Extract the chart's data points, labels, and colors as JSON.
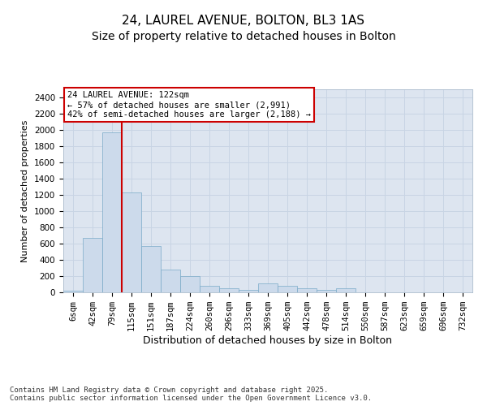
{
  "title1": "24, LAUREL AVENUE, BOLTON, BL3 1AS",
  "title2": "Size of property relative to detached houses in Bolton",
  "xlabel": "Distribution of detached houses by size in Bolton",
  "ylabel": "Number of detached properties",
  "categories": [
    "6sqm",
    "42sqm",
    "79sqm",
    "115sqm",
    "151sqm",
    "187sqm",
    "224sqm",
    "260sqm",
    "296sqm",
    "333sqm",
    "369sqm",
    "405sqm",
    "442sqm",
    "478sqm",
    "514sqm",
    "550sqm",
    "587sqm",
    "623sqm",
    "659sqm",
    "696sqm",
    "732sqm"
  ],
  "values": [
    18,
    675,
    1970,
    1230,
    575,
    280,
    200,
    80,
    55,
    35,
    115,
    80,
    50,
    35,
    50,
    0,
    0,
    0,
    0,
    0,
    0
  ],
  "bar_color": "#ccdaeb",
  "bar_edge_color": "#7aaac8",
  "grid_color": "#c8d4e4",
  "bg_color": "#dde5f0",
  "vline_x": 2.5,
  "vline_color": "#cc0000",
  "annotation_text": "24 LAUREL AVENUE: 122sqm\n← 57% of detached houses are smaller (2,991)\n42% of semi-detached houses are larger (2,188) →",
  "annotation_box_color": "#cc0000",
  "ylim": [
    0,
    2500
  ],
  "yticks": [
    0,
    200,
    400,
    600,
    800,
    1000,
    1200,
    1400,
    1600,
    1800,
    2000,
    2200,
    2400
  ],
  "footer": "Contains HM Land Registry data © Crown copyright and database right 2025.\nContains public sector information licensed under the Open Government Licence v3.0.",
  "title1_fontsize": 11,
  "title2_fontsize": 10,
  "ylabel_fontsize": 8,
  "xlabel_fontsize": 9,
  "tick_fontsize": 7.5
}
